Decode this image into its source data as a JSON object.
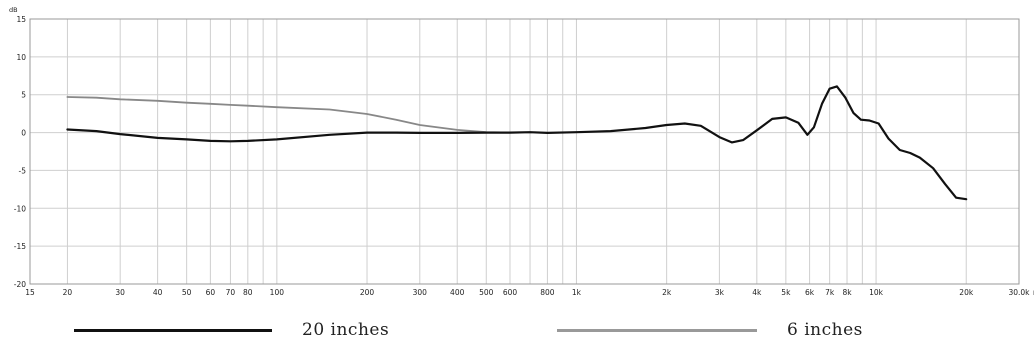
{
  "chart_data": {
    "type": "line",
    "title": "",
    "xlabel": "",
    "ylabel": "",
    "x_scale": "log",
    "xlim": [
      15,
      30000
    ],
    "ylim": [
      -20,
      15
    ],
    "y_unit": "dB",
    "x_unit": "Hz",
    "grid": true,
    "x_ticks": [
      {
        "value": 15,
        "label": "15"
      },
      {
        "value": 20,
        "label": "20"
      },
      {
        "value": 30,
        "label": "30"
      },
      {
        "value": 40,
        "label": "40"
      },
      {
        "value": 50,
        "label": "50"
      },
      {
        "value": 60,
        "label": "60"
      },
      {
        "value": 70,
        "label": "70"
      },
      {
        "value": 80,
        "label": "80"
      },
      {
        "value": 100,
        "label": "100"
      },
      {
        "value": 200,
        "label": "200"
      },
      {
        "value": 300,
        "label": "300"
      },
      {
        "value": 400,
        "label": "400"
      },
      {
        "value": 500,
        "label": "500"
      },
      {
        "value": 600,
        "label": "600"
      },
      {
        "value": 800,
        "label": "800"
      },
      {
        "value": 1000,
        "label": "1k"
      },
      {
        "value": 2000,
        "label": "2k"
      },
      {
        "value": 3000,
        "label": "3k"
      },
      {
        "value": 4000,
        "label": "4k"
      },
      {
        "value": 5000,
        "label": "5k"
      },
      {
        "value": 6000,
        "label": "6k"
      },
      {
        "value": 7000,
        "label": "7k"
      },
      {
        "value": 8000,
        "label": "8k"
      },
      {
        "value": 10000,
        "label": "10k"
      },
      {
        "value": 20000,
        "label": "20k"
      },
      {
        "value": 30000,
        "label": "30.0k"
      }
    ],
    "x_grid": [
      20,
      30,
      40,
      50,
      60,
      70,
      80,
      90,
      100,
      200,
      300,
      400,
      500,
      600,
      700,
      800,
      900,
      1000,
      2000,
      3000,
      4000,
      5000,
      6000,
      7000,
      8000,
      9000,
      10000,
      20000
    ],
    "y_ticks": [
      15,
      10,
      5,
      0,
      -5,
      -10,
      -15,
      -20
    ],
    "series": [
      {
        "name": "20 inches",
        "color": "#111111",
        "points": [
          [
            20,
            0.4
          ],
          [
            25,
            0.2
          ],
          [
            30,
            -0.2
          ],
          [
            40,
            -0.7
          ],
          [
            50,
            -0.9
          ],
          [
            60,
            -1.1
          ],
          [
            70,
            -1.15
          ],
          [
            80,
            -1.1
          ],
          [
            100,
            -0.9
          ],
          [
            150,
            -0.3
          ],
          [
            200,
            0.0
          ],
          [
            250,
            0.0
          ],
          [
            300,
            -0.05
          ],
          [
            400,
            -0.05
          ],
          [
            500,
            0.0
          ],
          [
            600,
            0.0
          ],
          [
            700,
            0.05
          ],
          [
            800,
            -0.05
          ],
          [
            1000,
            0.05
          ],
          [
            1300,
            0.2
          ],
          [
            1700,
            0.6
          ],
          [
            2000,
            1.0
          ],
          [
            2300,
            1.2
          ],
          [
            2600,
            0.9
          ],
          [
            3000,
            -0.6
          ],
          [
            3300,
            -1.3
          ],
          [
            3600,
            -1.0
          ],
          [
            4000,
            0.3
          ],
          [
            4500,
            1.8
          ],
          [
            5000,
            2.0
          ],
          [
            5500,
            1.3
          ],
          [
            5900,
            -0.3
          ],
          [
            6200,
            0.7
          ],
          [
            6600,
            3.8
          ],
          [
            7000,
            5.8
          ],
          [
            7400,
            6.1
          ],
          [
            7900,
            4.6
          ],
          [
            8400,
            2.6
          ],
          [
            8900,
            1.7
          ],
          [
            9500,
            1.6
          ],
          [
            10200,
            1.2
          ],
          [
            11000,
            -0.8
          ],
          [
            12000,
            -2.3
          ],
          [
            13000,
            -2.7
          ],
          [
            14000,
            -3.3
          ],
          [
            15500,
            -4.7
          ],
          [
            17000,
            -6.8
          ],
          [
            18500,
            -8.6
          ],
          [
            20000,
            -8.8
          ]
        ]
      },
      {
        "name": "6 inches",
        "color": "#888888",
        "points": [
          [
            20,
            4.7
          ],
          [
            25,
            4.6
          ],
          [
            30,
            4.4
          ],
          [
            40,
            4.2
          ],
          [
            50,
            3.95
          ],
          [
            60,
            3.8
          ],
          [
            70,
            3.65
          ],
          [
            80,
            3.55
          ],
          [
            100,
            3.35
          ],
          [
            150,
            3.05
          ],
          [
            200,
            2.45
          ],
          [
            250,
            1.7
          ],
          [
            300,
            1.0
          ],
          [
            400,
            0.35
          ],
          [
            500,
            0.05
          ],
          [
            600,
            0.0
          ]
        ]
      }
    ],
    "legend": {
      "placement": "bottom",
      "entries": [
        {
          "label": "20 inches",
          "color": "#111111"
        },
        {
          "label": "6 inches",
          "color": "#999999"
        }
      ]
    }
  }
}
